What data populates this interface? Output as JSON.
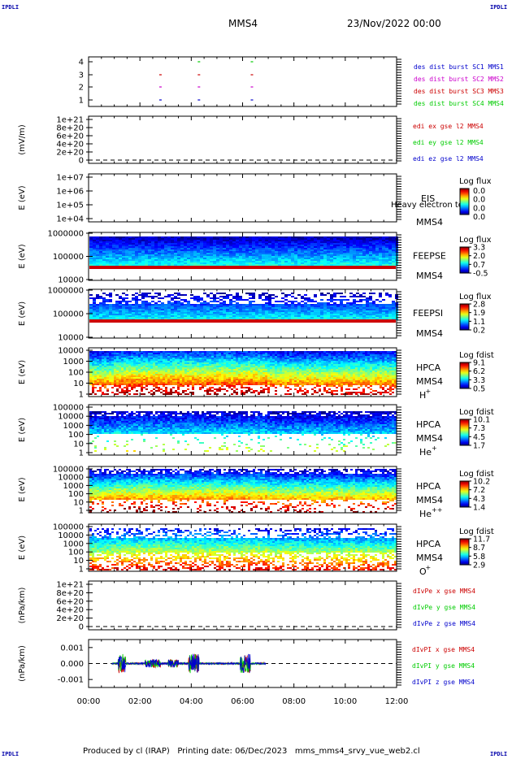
{
  "corner_labels": {
    "top_left": "IPDLI",
    "top_right": "IPDLI",
    "bottom_left": "IPDLI",
    "bottom_right": "IPDLI"
  },
  "header": {
    "spacecraft": "MMS4",
    "date": "23/Nov/2022 00:00"
  },
  "footer": "Produced by cl (IRAP)   Printing date: 06/Dec/2023   mms_mms4_srvy_vue_web2.cl",
  "colors": {
    "burst_sc1": "#0000cc",
    "burst_sc2": "#cc00cc",
    "burst_sc3": "#cc0000",
    "burst_sc4": "#00cc00",
    "x_component": "#cc0000",
    "y_component": "#00cc00",
    "z_component": "#0000cc"
  },
  "chart_data": [
    {
      "type": "scatter",
      "name": "burst",
      "y_ticks": [
        "1",
        "2",
        "3",
        "4"
      ],
      "legend": [
        {
          "text": "des dist burst SC1 MMS1",
          "color": "#0000cc"
        },
        {
          "text": "des dist burst SC2 MMS2",
          "color": "#cc00cc"
        },
        {
          "text": "des dist burst SC3 MMS3",
          "color": "#cc0000"
        },
        {
          "text": "des dist burst SC4 MMS4",
          "color": "#00cc00"
        }
      ],
      "series": [
        {
          "sc": 1,
          "times_h": [
            2.8,
            4.3,
            6.3
          ]
        },
        {
          "sc": 2,
          "times_h": [
            2.8,
            4.3,
            6.3
          ]
        },
        {
          "sc": 3,
          "times_h": [
            2.8,
            4.3,
            6.3
          ]
        },
        {
          "sc": 4,
          "times_h": [
            4.3,
            6.3
          ]
        }
      ]
    },
    {
      "type": "line",
      "name": "edi-e-field",
      "ylabel": "(mV/m)",
      "y_ticks": [
        "1e+21",
        "8e+20",
        "6e+20",
        "4e+20",
        "2e+20",
        "0"
      ],
      "legend": [
        {
          "text": "edi ex gse l2 MMS4",
          "color": "#cc0000"
        },
        {
          "text": "edi ey gse l2 MMS4",
          "color": "#00cc00"
        },
        {
          "text": "edi ez gse l2 MMS4",
          "color": "#0000cc"
        }
      ]
    },
    {
      "type": "heatmap",
      "name": "eis",
      "ylabel": "E (eV)",
      "y_ticks": [
        "1e+07",
        "1e+06",
        "1e+05",
        "1e+04"
      ],
      "labels": [
        "EIS",
        "MMS4"
      ],
      "overlay_text": "Heavy electron to",
      "colorbar": {
        "title": "Log flux",
        "ticks": [
          "0.0",
          "0.0",
          "0.0",
          "0.0"
        ]
      }
    },
    {
      "type": "heatmap",
      "name": "feepse",
      "ylabel": "E (eV)",
      "y_ticks": [
        "1000000",
        "100000",
        "10000"
      ],
      "labels": [
        "FEEPSE",
        "MMS4"
      ],
      "colorbar": {
        "title": "Log flux",
        "ticks": [
          "3.3",
          "2.0",
          "0.7",
          "-0.5"
        ]
      }
    },
    {
      "type": "heatmap",
      "name": "feepsi",
      "ylabel": "E (eV)",
      "y_ticks": [
        "1000000",
        "100000",
        "10000"
      ],
      "labels": [
        "FEEPSI",
        "MMS4"
      ],
      "colorbar": {
        "title": "Log flux",
        "ticks": [
          "2.8",
          "1.9",
          "1.1",
          "0.2"
        ]
      }
    },
    {
      "type": "heatmap",
      "name": "hpca-h",
      "ylabel": "E (eV)",
      "y_ticks": [
        "10000",
        "1000",
        "100",
        "10",
        "1"
      ],
      "labels": [
        "HPCA",
        "MMS4"
      ],
      "species": "H",
      "species_charge": "+",
      "colorbar": {
        "title": "Log fdist",
        "ticks": [
          "9.1",
          "6.2",
          "3.3",
          "0.5"
        ]
      }
    },
    {
      "type": "heatmap",
      "name": "hpca-he",
      "ylabel": "E (eV)",
      "y_ticks": [
        "100000",
        "10000",
        "1000",
        "100",
        "10",
        "1"
      ],
      "labels": [
        "HPCA",
        "MMS4"
      ],
      "species": "He",
      "species_charge": "+",
      "colorbar": {
        "title": "Log fdist",
        "ticks": [
          "10.1",
          "7.3",
          "4.5",
          "1.7"
        ]
      }
    },
    {
      "type": "heatmap",
      "name": "hpca-he2",
      "ylabel": "E (eV)",
      "y_ticks": [
        "100000",
        "10000",
        "1000",
        "100",
        "10",
        "1"
      ],
      "labels": [
        "HPCA",
        "MMS4"
      ],
      "species": "He",
      "species_charge": "++",
      "colorbar": {
        "title": "Log fdist",
        "ticks": [
          "10.2",
          "7.2",
          "4.3",
          "1.4"
        ]
      }
    },
    {
      "type": "heatmap",
      "name": "hpca-o",
      "ylabel": "E (eV)",
      "y_ticks": [
        "100000",
        "10000",
        "1000",
        "100",
        "10",
        "1"
      ],
      "labels": [
        "HPCA",
        "MMS4"
      ],
      "species": "O",
      "species_charge": "+",
      "colorbar": {
        "title": "Log fdist",
        "ticks": [
          "11.7",
          "8.7",
          "5.8",
          "2.9"
        ]
      }
    },
    {
      "type": "line",
      "name": "div-pe",
      "ylabel": "(nPa/km)",
      "y_ticks": [
        "1e+21",
        "8e+20",
        "6e+20",
        "4e+20",
        "2e+20",
        "0"
      ],
      "legend": [
        {
          "text": "dIvPe x gse MMS4",
          "color": "#cc0000"
        },
        {
          "text": "dIvPe y gse MMS4",
          "color": "#00cc00"
        },
        {
          "text": "dIvPe z gse MMS4",
          "color": "#0000cc"
        }
      ]
    },
    {
      "type": "line",
      "name": "div-pi",
      "ylabel": "(nPa/km)",
      "y_ticks": [
        "0.001",
        "0.000",
        "-0.001"
      ],
      "ylim": [
        -0.0015,
        0.0015
      ],
      "legend": [
        {
          "text": "dIvPI x gse MMS4",
          "color": "#cc0000"
        },
        {
          "text": "dIvPI y gse MMS4",
          "color": "#00cc00"
        },
        {
          "text": "dIvPI z gse MMS4",
          "color": "#0000cc"
        }
      ],
      "data_range_h": [
        0.9,
        6.9
      ]
    }
  ],
  "time_axis": {
    "ticks": [
      "00:00",
      "02:00",
      "04:00",
      "06:00",
      "08:00",
      "10:00",
      "12:00"
    ],
    "xlim_h": [
      0,
      12
    ]
  }
}
